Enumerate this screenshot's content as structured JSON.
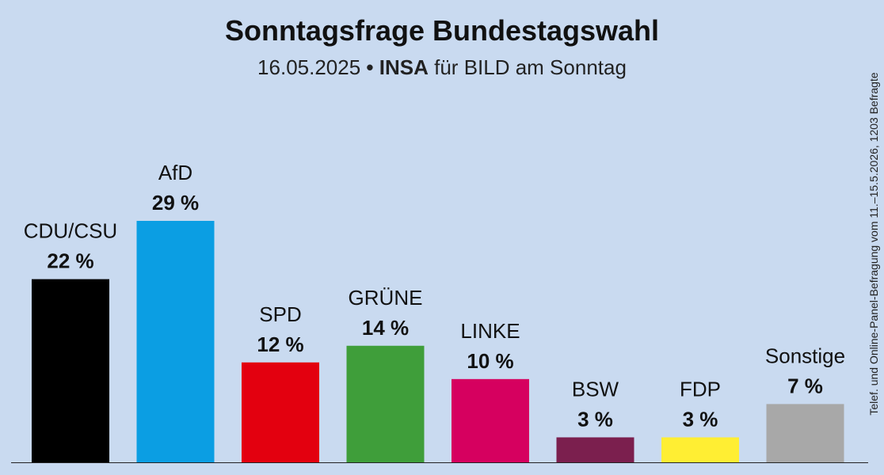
{
  "title": "Sonntagsfrage Bundestagswahl",
  "subtitle": {
    "date": "16.05.2025",
    "separator": "•",
    "institute": "INSA",
    "client": "für BILD am Sonntag"
  },
  "side_note": "Telef. und Online-Panel-Befragung vom 11.–15.5.2026, 1203 Befragte",
  "chart_data": {
    "type": "bar",
    "categories": [
      "CDU/CSU",
      "AfD",
      "SPD",
      "GRÜNE",
      "LINKE",
      "BSW",
      "FDP",
      "Sonstige"
    ],
    "values": [
      22,
      29,
      12,
      14,
      10,
      3,
      3,
      7
    ],
    "value_labels": [
      "22 %",
      "29 %",
      "12 %",
      "14 %",
      "10 %",
      "3 %",
      "3 %",
      "7 %"
    ],
    "colors": [
      "#000000",
      "#0b9ee3",
      "#e3000f",
      "#3f9e3a",
      "#d6005f",
      "#7b1f4e",
      "#ffee33",
      "#a8a8a8"
    ],
    "ylim": [
      0,
      29
    ],
    "grid": false,
    "legend": "none"
  }
}
